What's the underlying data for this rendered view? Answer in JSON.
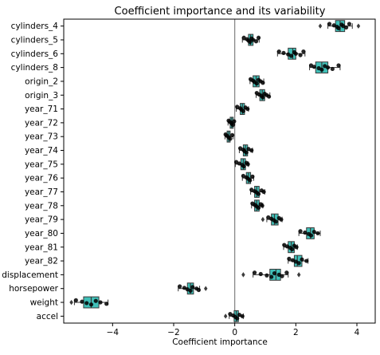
{
  "chart_data": {
    "type": "boxplot",
    "orientation": "horizontal",
    "title": "Coefficient importance and its variability",
    "xlabel": "Coefficient importance",
    "ylabel": "",
    "xlim": [
      -5.6,
      4.6
    ],
    "xticks": [
      {
        "value": -4,
        "label": "−4"
      },
      {
        "value": -2,
        "label": "−2"
      },
      {
        "value": 0,
        "label": "0"
      },
      {
        "value": 2,
        "label": "2"
      },
      {
        "value": 4,
        "label": "4"
      }
    ],
    "zero_line": 0,
    "grid": false,
    "box_color": "#40c0b8",
    "point_color": "#000000",
    "categories": [
      {
        "name": "cylinders_4",
        "q1": 3.3,
        "median": 3.45,
        "q3": 3.6,
        "wlow": 3.05,
        "whigh": 3.85,
        "outliers": [
          2.8,
          4.05
        ],
        "points": [
          3.1,
          3.25,
          3.35,
          3.4,
          3.5,
          3.55,
          3.65,
          3.75
        ]
      },
      {
        "name": "cylinders_5",
        "q1": 0.45,
        "median": 0.52,
        "q3": 0.6,
        "wlow": 0.25,
        "whigh": 0.8,
        "outliers": [],
        "points": [
          0.3,
          0.4,
          0.45,
          0.5,
          0.55,
          0.6,
          0.7,
          0.78
        ]
      },
      {
        "name": "cylinders_6",
        "q1": 1.75,
        "median": 1.9,
        "q3": 2.0,
        "wlow": 1.4,
        "whigh": 2.3,
        "outliers": [],
        "points": [
          1.45,
          1.6,
          1.75,
          1.85,
          1.95,
          2.0,
          2.15,
          2.25
        ]
      },
      {
        "name": "cylinders_8",
        "q1": 2.65,
        "median": 2.85,
        "q3": 3.05,
        "wlow": 2.45,
        "whigh": 3.45,
        "outliers": [],
        "points": [
          2.5,
          2.6,
          2.75,
          2.85,
          2.95,
          3.05,
          3.2,
          3.4
        ]
      },
      {
        "name": "origin_2",
        "q1": 0.6,
        "median": 0.7,
        "q3": 0.8,
        "wlow": 0.5,
        "whigh": 0.95,
        "outliers": [],
        "points": [
          0.52,
          0.6,
          0.65,
          0.72,
          0.78,
          0.85,
          0.92
        ]
      },
      {
        "name": "origin_3",
        "q1": 0.82,
        "median": 0.9,
        "q3": 0.98,
        "wlow": 0.7,
        "whigh": 1.15,
        "outliers": [],
        "points": [
          0.72,
          0.8,
          0.88,
          0.92,
          0.98,
          1.05,
          1.12
        ]
      },
      {
        "name": "year_71",
        "q1": 0.18,
        "median": 0.25,
        "q3": 0.32,
        "wlow": 0.05,
        "whigh": 0.45,
        "outliers": [],
        "points": [
          0.08,
          0.18,
          0.22,
          0.28,
          0.35,
          0.42
        ]
      },
      {
        "name": "year_72",
        "q1": -0.15,
        "median": -0.1,
        "q3": -0.05,
        "wlow": -0.22,
        "whigh": 0.0,
        "outliers": [],
        "points": [
          -0.2,
          -0.15,
          -0.1,
          -0.06,
          -0.02
        ]
      },
      {
        "name": "year_73",
        "q1": -0.25,
        "median": -0.2,
        "q3": -0.15,
        "wlow": -0.32,
        "whigh": -0.05,
        "outliers": [],
        "points": [
          -0.3,
          -0.25,
          -0.2,
          -0.15,
          -0.08
        ]
      },
      {
        "name": "year_74",
        "q1": 0.28,
        "median": 0.35,
        "q3": 0.42,
        "wlow": 0.15,
        "whigh": 0.58,
        "outliers": [],
        "points": [
          0.18,
          0.28,
          0.32,
          0.38,
          0.45,
          0.55
        ]
      },
      {
        "name": "year_75",
        "q1": 0.2,
        "median": 0.28,
        "q3": 0.35,
        "wlow": 0.02,
        "whigh": 0.45,
        "outliers": [],
        "points": [
          0.05,
          0.15,
          0.25,
          0.3,
          0.38,
          0.43
        ]
      },
      {
        "name": "year_76",
        "q1": 0.38,
        "median": 0.45,
        "q3": 0.52,
        "wlow": 0.25,
        "whigh": 0.62,
        "outliers": [],
        "points": [
          0.28,
          0.38,
          0.44,
          0.5,
          0.58
        ]
      },
      {
        "name": "year_77",
        "q1": 0.65,
        "median": 0.72,
        "q3": 0.8,
        "wlow": 0.52,
        "whigh": 0.98,
        "outliers": [],
        "points": [
          0.55,
          0.65,
          0.72,
          0.78,
          0.88,
          0.95
        ]
      },
      {
        "name": "year_78",
        "q1": 0.65,
        "median": 0.72,
        "q3": 0.8,
        "wlow": 0.55,
        "whigh": 0.92,
        "outliers": [],
        "points": [
          0.58,
          0.66,
          0.72,
          0.78,
          0.85,
          0.9
        ]
      },
      {
        "name": "year_79",
        "q1": 1.2,
        "median": 1.3,
        "q3": 1.42,
        "wlow": 1.05,
        "whigh": 1.55,
        "outliers": [
          0.92
        ],
        "points": [
          1.1,
          1.2,
          1.28,
          1.35,
          1.45,
          1.52
        ]
      },
      {
        "name": "year_80",
        "q1": 2.35,
        "median": 2.48,
        "q3": 2.6,
        "wlow": 2.1,
        "whigh": 2.8,
        "outliers": [],
        "points": [
          2.15,
          2.3,
          2.42,
          2.5,
          2.6,
          2.72
        ]
      },
      {
        "name": "year_81",
        "q1": 1.75,
        "median": 1.85,
        "q3": 1.95,
        "wlow": 1.6,
        "whigh": 2.05,
        "outliers": [],
        "points": [
          1.62,
          1.72,
          1.82,
          1.88,
          1.95,
          2.02
        ]
      },
      {
        "name": "year_82",
        "q1": 1.95,
        "median": 2.05,
        "q3": 2.2,
        "wlow": 1.75,
        "whigh": 2.4,
        "outliers": [],
        "points": [
          1.78,
          1.9,
          2.0,
          2.1,
          2.2,
          2.35
        ]
      },
      {
        "name": "displacement",
        "q1": 1.15,
        "median": 1.35,
        "q3": 1.5,
        "wlow": 0.6,
        "whigh": 1.75,
        "outliers": [
          0.28,
          2.1
        ],
        "points": [
          0.65,
          0.85,
          1.05,
          1.2,
          1.3,
          1.45,
          1.55,
          1.7
        ]
      },
      {
        "name": "horsepower",
        "q1": -1.55,
        "median": -1.45,
        "q3": -1.35,
        "wlow": -1.85,
        "whigh": -1.15,
        "outliers": [
          -0.95
        ],
        "points": [
          -1.8,
          -1.65,
          -1.55,
          -1.45,
          -1.38,
          -1.25,
          -1.18
        ]
      },
      {
        "name": "weight",
        "q1": -4.95,
        "median": -4.7,
        "q3": -4.45,
        "wlow": -5.25,
        "whigh": -4.15,
        "outliers": [
          -5.35
        ],
        "points": [
          -5.2,
          -5.0,
          -4.85,
          -4.7,
          -4.55,
          -4.4,
          -4.2
        ]
      },
      {
        "name": "accel",
        "q1": -0.02,
        "median": 0.05,
        "q3": 0.12,
        "wlow": -0.18,
        "whigh": 0.28,
        "outliers": [
          -0.3
        ],
        "points": [
          -0.15,
          -0.05,
          0.02,
          0.08,
          0.15,
          0.25
        ]
      }
    ]
  }
}
